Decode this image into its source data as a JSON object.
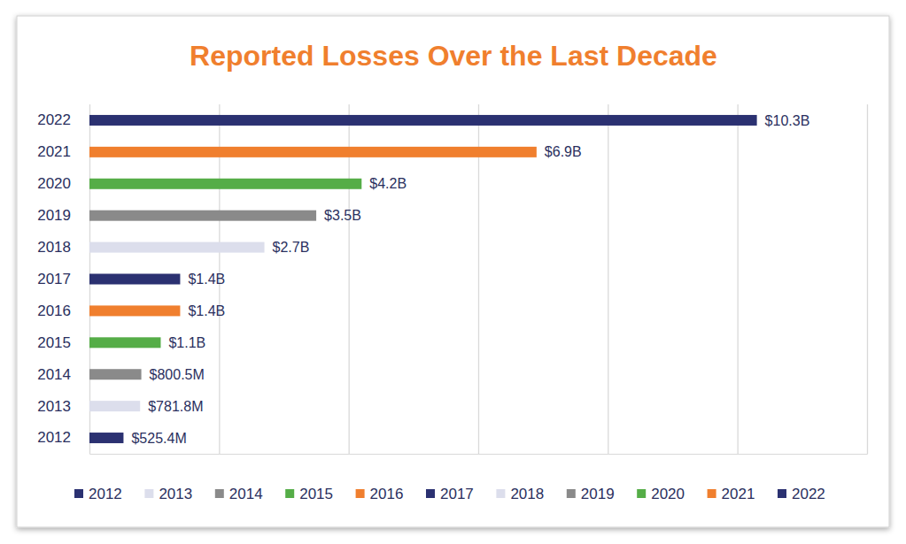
{
  "chart_data": {
    "type": "bar",
    "title": "Reported Losses Over the Last Decade",
    "orientation": "horizontal",
    "categories": [
      "2012",
      "2013",
      "2014",
      "2015",
      "2016",
      "2017",
      "2018",
      "2019",
      "2020",
      "2021",
      "2022"
    ],
    "values": [
      0.5254,
      0.7818,
      0.8005,
      1.1,
      1.4,
      1.4,
      2.7,
      3.5,
      4.2,
      6.9,
      10.3
    ],
    "value_labels": [
      "$525.4M",
      "$781.8M",
      "$800.5M",
      "$1.1B",
      "$1.4B",
      "$1.4B",
      "$2.7B",
      "$3.5B",
      "$4.2B",
      "$6.9B",
      "$10.3B"
    ],
    "colors": [
      "#2b3171",
      "#dcdeec",
      "#8a8a8a",
      "#55ad47",
      "#f07f2e",
      "#2b3171",
      "#dcdeec",
      "#8a8a8a",
      "#55ad47",
      "#f07f2e",
      "#2b3171"
    ],
    "xlim": [
      0,
      12
    ],
    "xticks": [
      0,
      2,
      4,
      6,
      8,
      10,
      12
    ],
    "grid": true,
    "data_labels": true,
    "tick_labels": "y",
    "legend": "bottom"
  }
}
